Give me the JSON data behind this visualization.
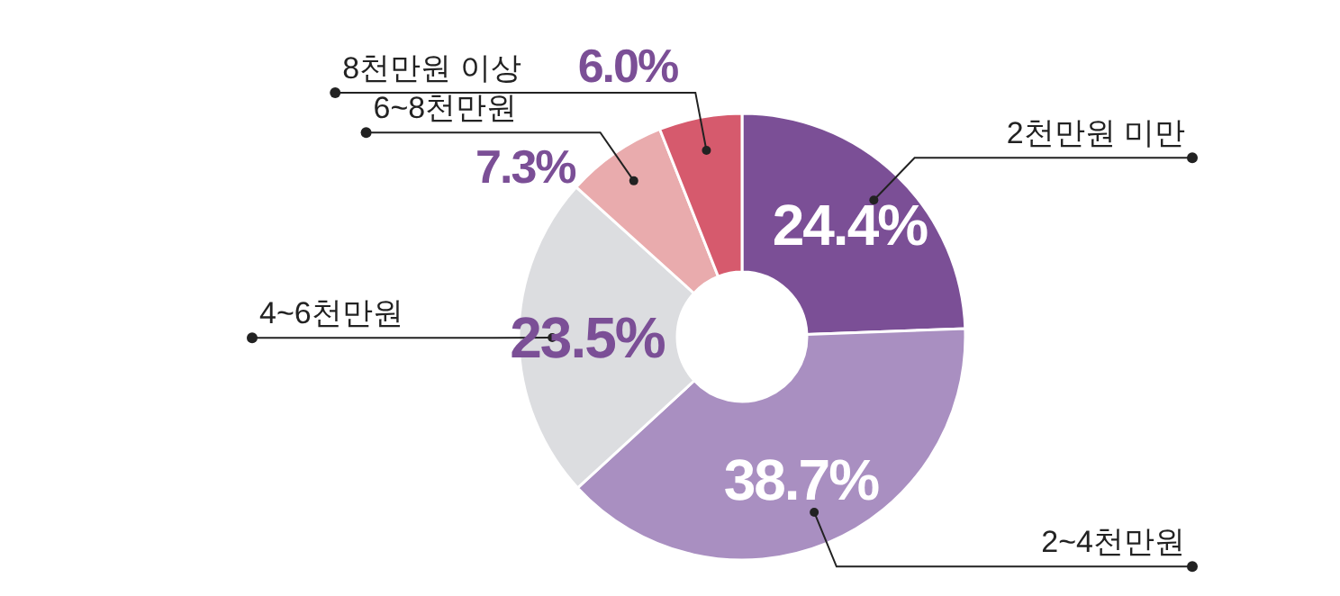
{
  "chart_data": {
    "type": "donut",
    "categories": [
      "2천만원 미만",
      "2~4천만원",
      "4~6천만원",
      "6~8천만원",
      "8천만원 이상"
    ],
    "values": [
      24.4,
      38.7,
      23.5,
      7.3,
      6.0
    ],
    "colors": [
      "#7b4f96",
      "#a98fc1",
      "#dcdde0",
      "#e9abad",
      "#d65a6d"
    ],
    "value_labels": [
      "24.4%",
      "38.7%",
      "23.5%",
      "7.3%",
      "6.0%"
    ]
  }
}
